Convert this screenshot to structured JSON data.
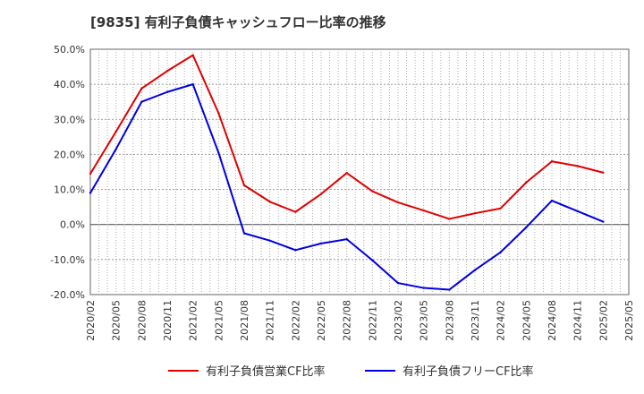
{
  "chart_data": {
    "type": "line",
    "title": "[9835]  有利子負債キャッシュフロー比率の推移",
    "xlabel": "",
    "ylabel": "",
    "x_ticks": [
      "2020/02",
      "2020/05",
      "2020/08",
      "2020/11",
      "2021/02",
      "2021/05",
      "2021/08",
      "2021/11",
      "2022/02",
      "2022/05",
      "2022/08",
      "2022/11",
      "2023/02",
      "2023/05",
      "2023/08",
      "2023/11",
      "2024/02",
      "2024/05",
      "2024/08",
      "2024/11",
      "2025/02",
      "2025/05"
    ],
    "y_ticks": [
      "50.0%",
      "40.0%",
      "30.0%",
      "20.0%",
      "10.0%",
      "0.0%",
      "-10.0%",
      "-20.0%"
    ],
    "ylim": [
      -20,
      50
    ],
    "y_unit": "%",
    "grid": true,
    "legend_position": "bottom",
    "x": [
      "2020/02",
      "2020/05",
      "2020/08",
      "2020/11",
      "2021/02",
      "2021/05",
      "2021/08",
      "2021/11",
      "2022/02",
      "2022/05",
      "2022/08",
      "2022/11",
      "2023/02",
      "2023/05",
      "2023/08",
      "2023/11",
      "2024/02",
      "2024/05",
      "2024/08",
      "2024/11",
      "2025/02"
    ],
    "series": [
      {
        "name": "有利子負債営業CF比率",
        "color": "#e00000",
        "values": [
          14.5,
          26.5,
          38.8,
          43.8,
          48.3,
          31.8,
          11.2,
          6.5,
          3.6,
          8.7,
          14.7,
          9.5,
          6.3,
          4.0,
          1.6,
          3.2,
          4.6,
          12.0,
          18.0,
          16.7,
          14.8
        ]
      },
      {
        "name": "有利子負債フリーCF比率",
        "color": "#0000e0",
        "values": [
          9.0,
          21.5,
          35.0,
          37.8,
          40.0,
          20.5,
          -2.5,
          -4.6,
          -7.3,
          -5.4,
          -4.2,
          -10.2,
          -16.7,
          -18.1,
          -18.6,
          -13.0,
          -7.9,
          -0.8,
          6.8,
          3.8,
          0.8
        ]
      }
    ]
  }
}
